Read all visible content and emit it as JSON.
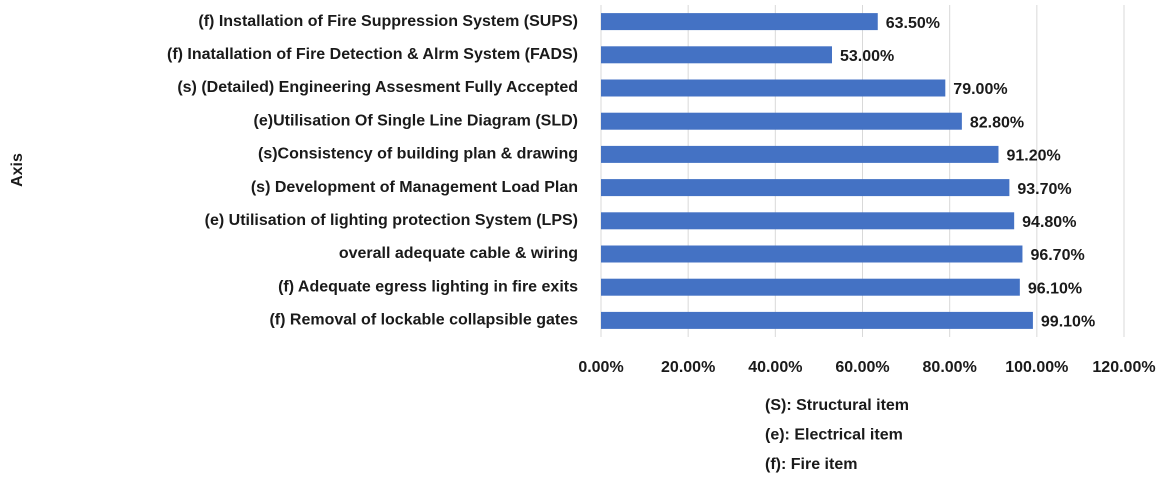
{
  "chart_data": {
    "type": "bar",
    "orientation": "horizontal",
    "y_axis_label": "Axis",
    "categories": [
      "(f) Installation of Fire Suppression System (SUPS)",
      "(f) Inatallation of Fire Detection & Alrm System (FADS)",
      "(s) (Detailed) Engineering Assesment Fully Accepted",
      "(e)Utilisation Of Single Line Diagram (SLD)",
      "(s)Consistency of building plan & drawing",
      "(s) Development of Management Load Plan",
      "(e) Utilisation of lighting protection System (LPS)",
      "overall adequate cable & wiring",
      "(f) Adequate egress lighting in fire exits",
      "(f) Removal of lockable collapsible gates"
    ],
    "values": [
      63.5,
      53,
      79,
      82.8,
      91.2,
      93.7,
      94.8,
      96.7,
      96.1,
      99.1
    ],
    "value_labels": [
      "63.50%",
      "53.00%",
      "79.00%",
      "82.80%",
      "91.20%",
      "93.70%",
      "94.80%",
      "96.70%",
      "96.10%",
      "99.10%"
    ],
    "color": "#4472c4",
    "xlim": [
      0,
      120
    ],
    "xticks": [
      {
        "value": 0,
        "label": "0.00%"
      },
      {
        "value": 20,
        "label": "20.00%"
      },
      {
        "value": 40,
        "label": "40.00%"
      },
      {
        "value": 60,
        "label": "60.00%"
      },
      {
        "value": 80,
        "label": "80.00%"
      },
      {
        "value": 100,
        "label": "100.00%"
      },
      {
        "value": 120,
        "label": "120.00%"
      }
    ],
    "grid": true,
    "notes": [
      "(S): Structural item",
      "(e): Electrical item",
      "(f): Fire item"
    ]
  }
}
